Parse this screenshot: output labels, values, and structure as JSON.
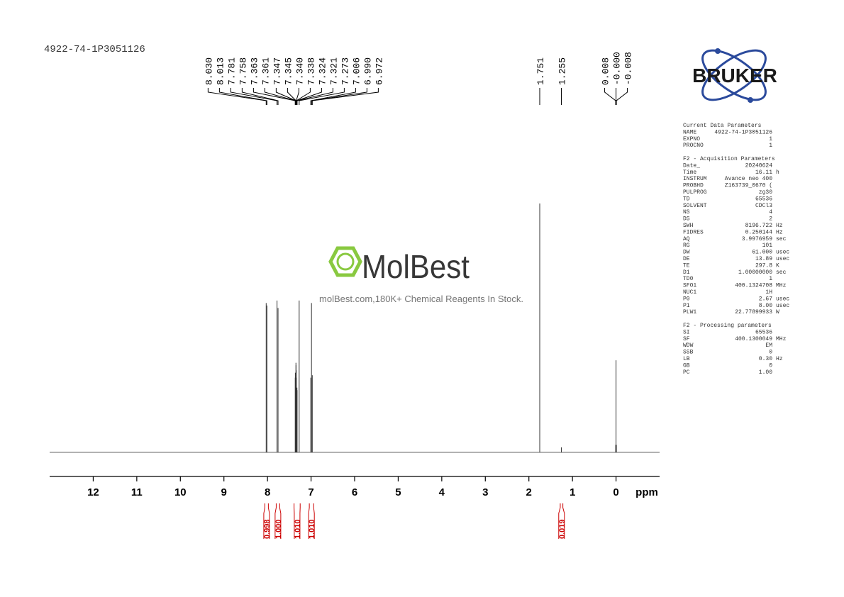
{
  "chart_data": {
    "type": "nmr",
    "title": "4922-74-1P3051126",
    "xlabel": "ppm",
    "xlim": [
      13,
      -1
    ],
    "xticks": [
      12,
      11,
      10,
      9,
      8,
      7,
      6,
      5,
      4,
      3,
      2,
      1,
      0
    ],
    "ylim": [
      0,
      100
    ],
    "peaks": {
      "x": [
        8.03,
        8.013,
        7.781,
        7.758,
        7.363,
        7.361,
        7.347,
        7.345,
        7.34,
        7.338,
        7.324,
        7.321,
        7.273,
        7.006,
        6.99,
        6.972,
        1.751,
        1.255,
        0.008,
        0,
        -0.008
      ],
      "x_labels": [
        "8.030",
        "8.013",
        "7.781",
        "7.758",
        "7.363",
        "7.361",
        "7.347",
        "7.345",
        "7.340",
        "7.338",
        "7.324",
        "7.321",
        "7.273",
        "7.006",
        "6.990",
        "6.972",
        "1.751",
        "1.255",
        "0.008",
        "-0.000",
        "-0.008"
      ],
      "values": [
        60,
        59,
        61,
        58,
        30,
        32,
        36,
        35,
        33,
        30,
        26,
        25,
        61,
        30,
        60,
        31,
        100,
        2,
        3,
        37,
        3
      ],
      "color": "#333333"
    },
    "integrals": {
      "from": [
        8.06,
        7.8,
        7.39,
        7.04,
        1.28
      ],
      "to": [
        7.98,
        7.72,
        7.25,
        6.94,
        1.22
      ],
      "values": [
        0.998,
        1,
        1.01,
        1.01,
        0.019
      ],
      "value_labels": [
        "0.998",
        "1.000",
        "1.010",
        "1.010",
        "0.019"
      ],
      "color": "#cc0000"
    }
  },
  "logo": "BRUKER",
  "watermark": {
    "name": "MolBest",
    "tagline": "molBest.com,180K+ Chemical Reagents In Stock."
  },
  "parameters": [
    {
      "title": "Current Data Parameters",
      "rows": [
        [
          "NAME",
          "4922-74-1P3051126"
        ],
        [
          "EXPNO",
          "1"
        ],
        [
          "PROCNO",
          "1"
        ]
      ]
    },
    {
      "title": "F2 - Acquisition Parameters",
      "rows": [
        [
          "Date_",
          "20240624"
        ],
        [
          "Time",
          "16.11",
          "h"
        ],
        [
          "INSTRUM",
          "Avance neo 400"
        ],
        [
          "PROBHD",
          "Z163739_0670 ("
        ],
        [
          "PULPROG",
          "zg30"
        ],
        [
          "TD",
          "65536"
        ],
        [
          "SOLVENT",
          "CDCl3"
        ],
        [
          "NS",
          "4"
        ],
        [
          "DS",
          "2"
        ],
        [
          "SWH",
          "8196.722",
          "Hz"
        ],
        [
          "FIDRES",
          "0.250144",
          "Hz"
        ],
        [
          "AQ",
          "3.9976959",
          "sec"
        ],
        [
          "RG",
          "101"
        ],
        [
          "DW",
          "61.000",
          "usec"
        ],
        [
          "DE",
          "13.89",
          "usec"
        ],
        [
          "TE",
          "297.8",
          "K"
        ],
        [
          "D1",
          "1.00000000",
          "sec"
        ],
        [
          "TD0",
          "1"
        ],
        [
          "SFO1",
          "400.1324708",
          "MHz"
        ],
        [
          "NUC1",
          "1H"
        ],
        [
          "P0",
          "2.67",
          "usec"
        ],
        [
          "P1",
          "8.00",
          "usec"
        ],
        [
          "PLW1",
          "22.77899933",
          "W"
        ]
      ]
    },
    {
      "title": "F2 - Processing parameters",
      "rows": [
        [
          "SI",
          "65536"
        ],
        [
          "SF",
          "400.1300049",
          "MHz"
        ],
        [
          "WDW",
          "EM"
        ],
        [
          "SSB",
          "0"
        ],
        [
          "LB",
          "0.30",
          "Hz"
        ],
        [
          "GB",
          "0"
        ],
        [
          "PC",
          "1.00"
        ]
      ]
    }
  ]
}
